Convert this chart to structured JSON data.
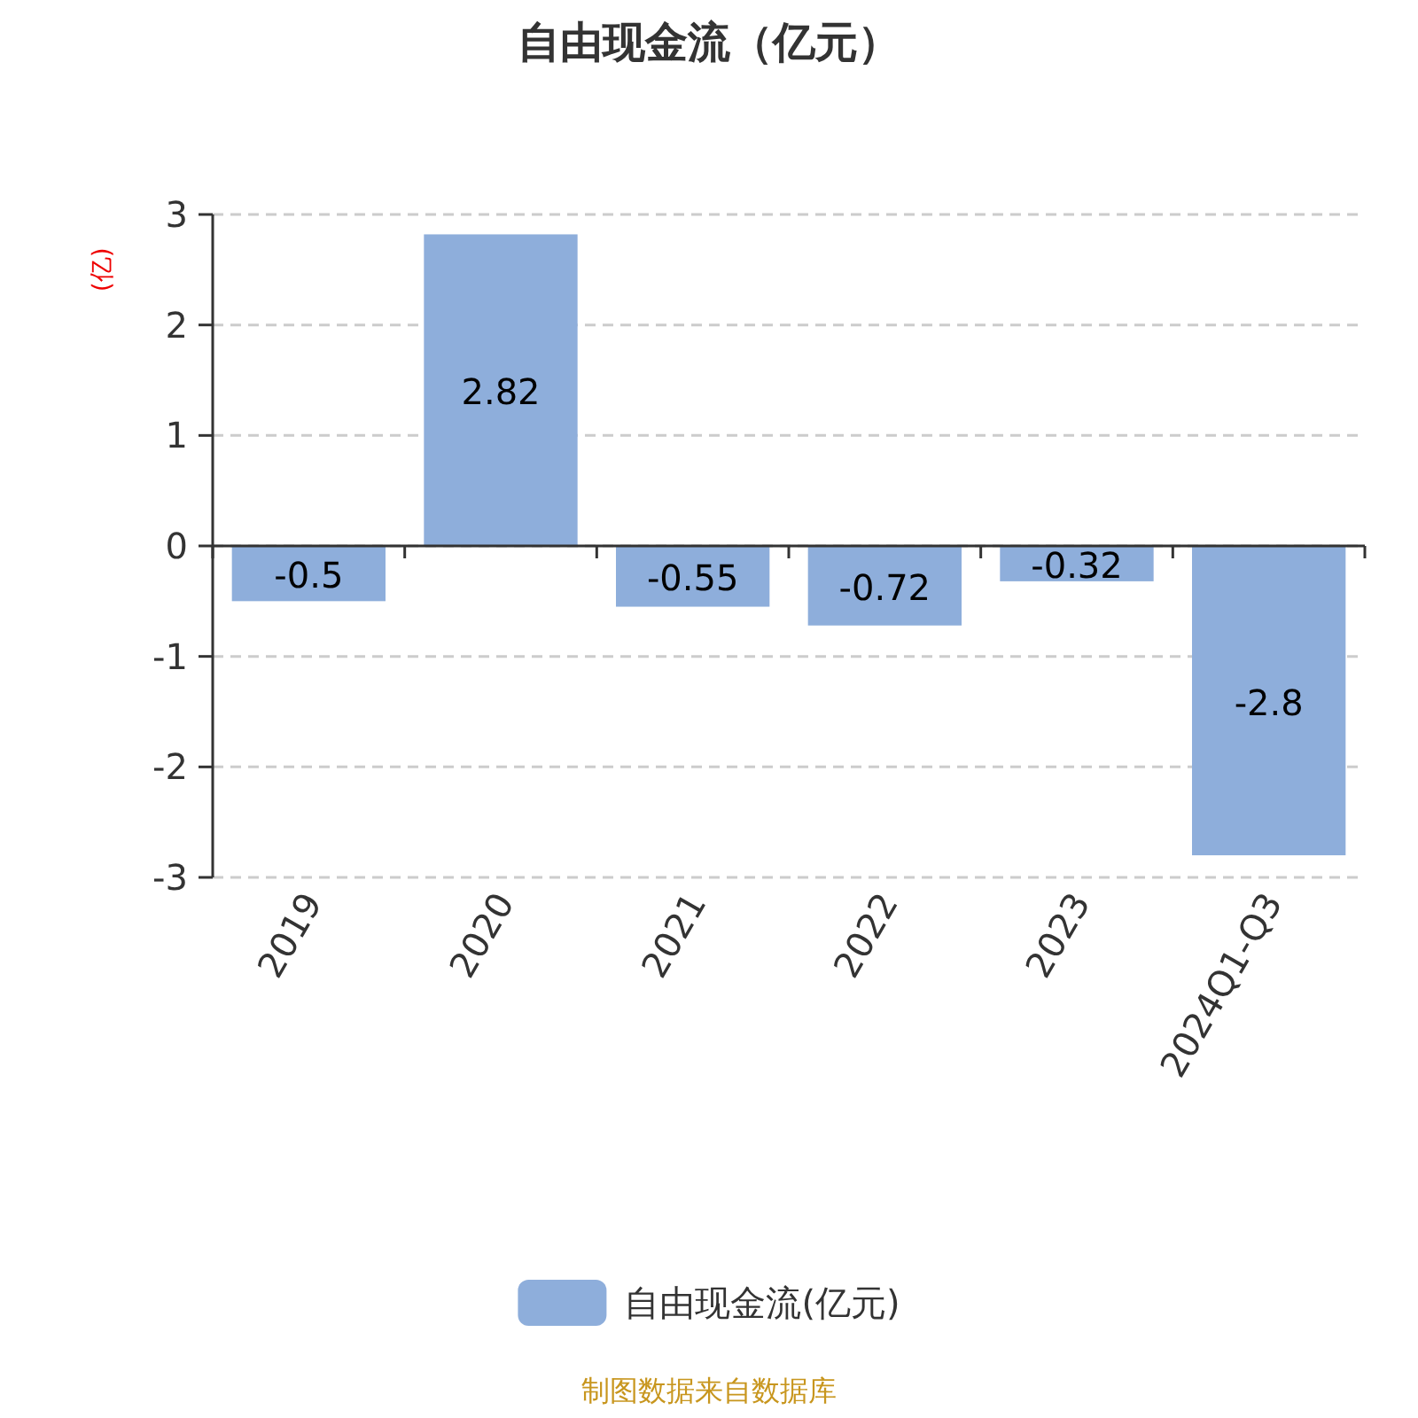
{
  "chart_data": {
    "type": "bar",
    "title": "自由现金流（亿元）",
    "ylabel": "(亿)",
    "categories": [
      "2019",
      "2020",
      "2021",
      "2022",
      "2023",
      "2024Q1-Q3"
    ],
    "series": [
      {
        "name": "自由现金流(亿元)",
        "color": "#8eaedb",
        "values": [
          -0.5,
          2.82,
          -0.55,
          -0.72,
          -0.32,
          -2.8
        ]
      }
    ],
    "ylim": [
      -3,
      3
    ],
    "yticks": [
      -3,
      -2,
      -1,
      0,
      1,
      2,
      3
    ],
    "grid": "y",
    "legend": "bottom",
    "data_labels": true,
    "annotations": [
      "制图数据来自数据库"
    ]
  }
}
